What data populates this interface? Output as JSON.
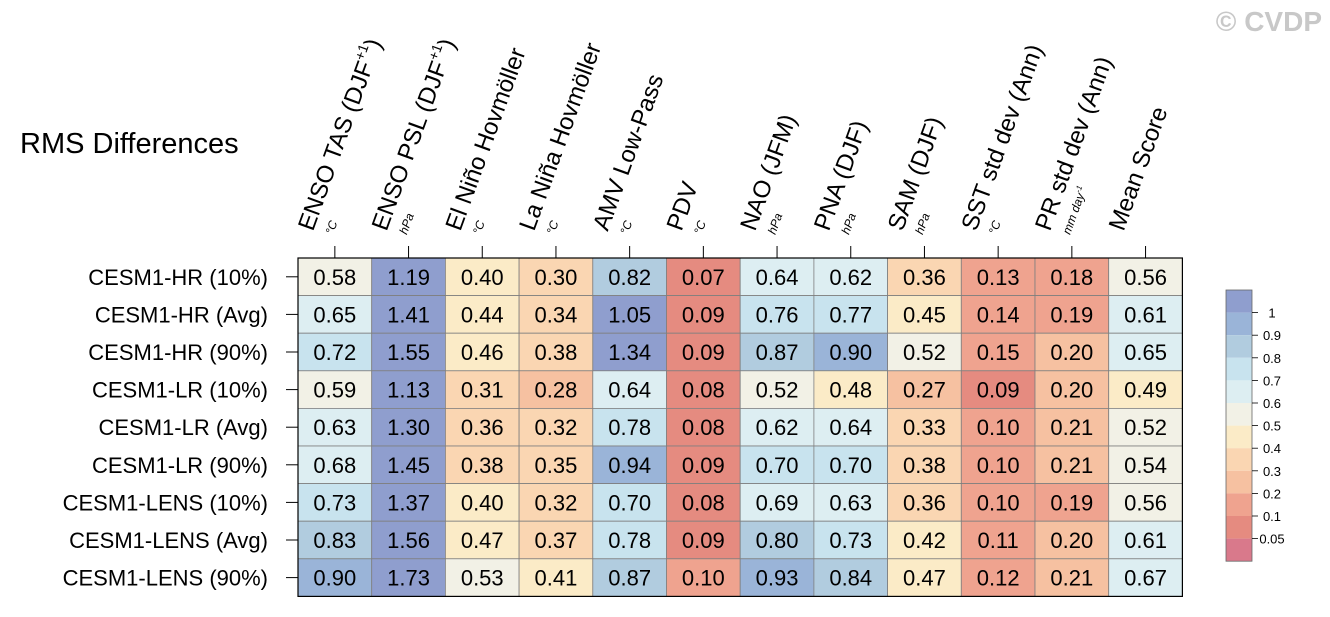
{
  "watermark": "© CVDP",
  "chart_data": {
    "type": "heatmap",
    "title": "RMS Differences",
    "columns": [
      {
        "label": "ENSO TAS (DJF",
        "sup": "+1",
        "close": ")",
        "unit": "°C"
      },
      {
        "label": "ENSO PSL (DJF",
        "sup": "+1",
        "close": ")",
        "unit": "hPa"
      },
      {
        "label": "El Niño Hovmöller",
        "unit": "°C"
      },
      {
        "label": "La Niña Hovmöller",
        "unit": "°C"
      },
      {
        "label": "AMV Low-Pass",
        "unit": "°C"
      },
      {
        "label": "PDV",
        "unit": "°C"
      },
      {
        "label": "NAO (JFM)",
        "unit": "hPa"
      },
      {
        "label": "PNA (DJF)",
        "unit": "hPa"
      },
      {
        "label": "SAM (DJF)",
        "unit": "hPa"
      },
      {
        "label": "SST std dev (Ann)",
        "unit": "°C"
      },
      {
        "label": "PR std dev (Ann)",
        "unit": "mm day",
        "unit_sup": "-1"
      },
      {
        "label": "Mean Score",
        "unit": ""
      }
    ],
    "rows": [
      {
        "label": "CESM1-HR (10%)",
        "values": [
          0.58,
          1.19,
          0.4,
          0.3,
          0.82,
          0.07,
          0.64,
          0.62,
          0.36,
          0.13,
          0.18,
          0.56
        ]
      },
      {
        "label": "CESM1-HR (Avg)",
        "values": [
          0.65,
          1.41,
          0.44,
          0.34,
          1.05,
          0.09,
          0.76,
          0.77,
          0.45,
          0.14,
          0.19,
          0.61
        ]
      },
      {
        "label": "CESM1-HR (90%)",
        "values": [
          0.72,
          1.55,
          0.46,
          0.38,
          1.34,
          0.09,
          0.87,
          0.9,
          0.52,
          0.15,
          0.2,
          0.65
        ]
      },
      {
        "label": "CESM1-LR (10%)",
        "values": [
          0.59,
          1.13,
          0.31,
          0.28,
          0.64,
          0.08,
          0.52,
          0.48,
          0.27,
          0.09,
          0.2,
          0.49
        ]
      },
      {
        "label": "CESM1-LR (Avg)",
        "values": [
          0.63,
          1.3,
          0.36,
          0.32,
          0.78,
          0.08,
          0.62,
          0.64,
          0.33,
          0.1,
          0.21,
          0.52
        ]
      },
      {
        "label": "CESM1-LR (90%)",
        "values": [
          0.68,
          1.45,
          0.38,
          0.35,
          0.94,
          0.09,
          0.7,
          0.7,
          0.38,
          0.1,
          0.21,
          0.54
        ]
      },
      {
        "label": "CESM1-LENS (10%)",
        "values": [
          0.73,
          1.37,
          0.4,
          0.32,
          0.7,
          0.08,
          0.69,
          0.63,
          0.36,
          0.1,
          0.19,
          0.56
        ]
      },
      {
        "label": "CESM1-LENS (Avg)",
        "values": [
          0.83,
          1.56,
          0.47,
          0.37,
          0.78,
          0.09,
          0.8,
          0.73,
          0.42,
          0.11,
          0.2,
          0.61
        ]
      },
      {
        "label": "CESM1-LENS (90%)",
        "values": [
          0.9,
          1.73,
          0.53,
          0.41,
          0.87,
          0.1,
          0.93,
          0.84,
          0.47,
          0.12,
          0.21,
          0.67
        ]
      }
    ],
    "colorbar": {
      "levels": [
        0.05,
        0.1,
        0.2,
        0.3,
        0.4,
        0.5,
        0.6,
        0.7,
        0.8,
        0.9,
        1
      ],
      "labels": [
        "1",
        "0.9",
        "0.8",
        "0.7",
        "0.6",
        "0.5",
        "0.4",
        "0.3",
        "0.2",
        "0.1",
        "0.05"
      ],
      "colors": [
        "#d9798b",
        "#e58b80",
        "#efa38f",
        "#f6c1a1",
        "#fad6b2",
        "#fbebc7",
        "#f2f1e6",
        "#ddeef2",
        "#c8e3ee",
        "#b1ccdf",
        "#9ab4d8",
        "#8f9ece"
      ]
    }
  }
}
